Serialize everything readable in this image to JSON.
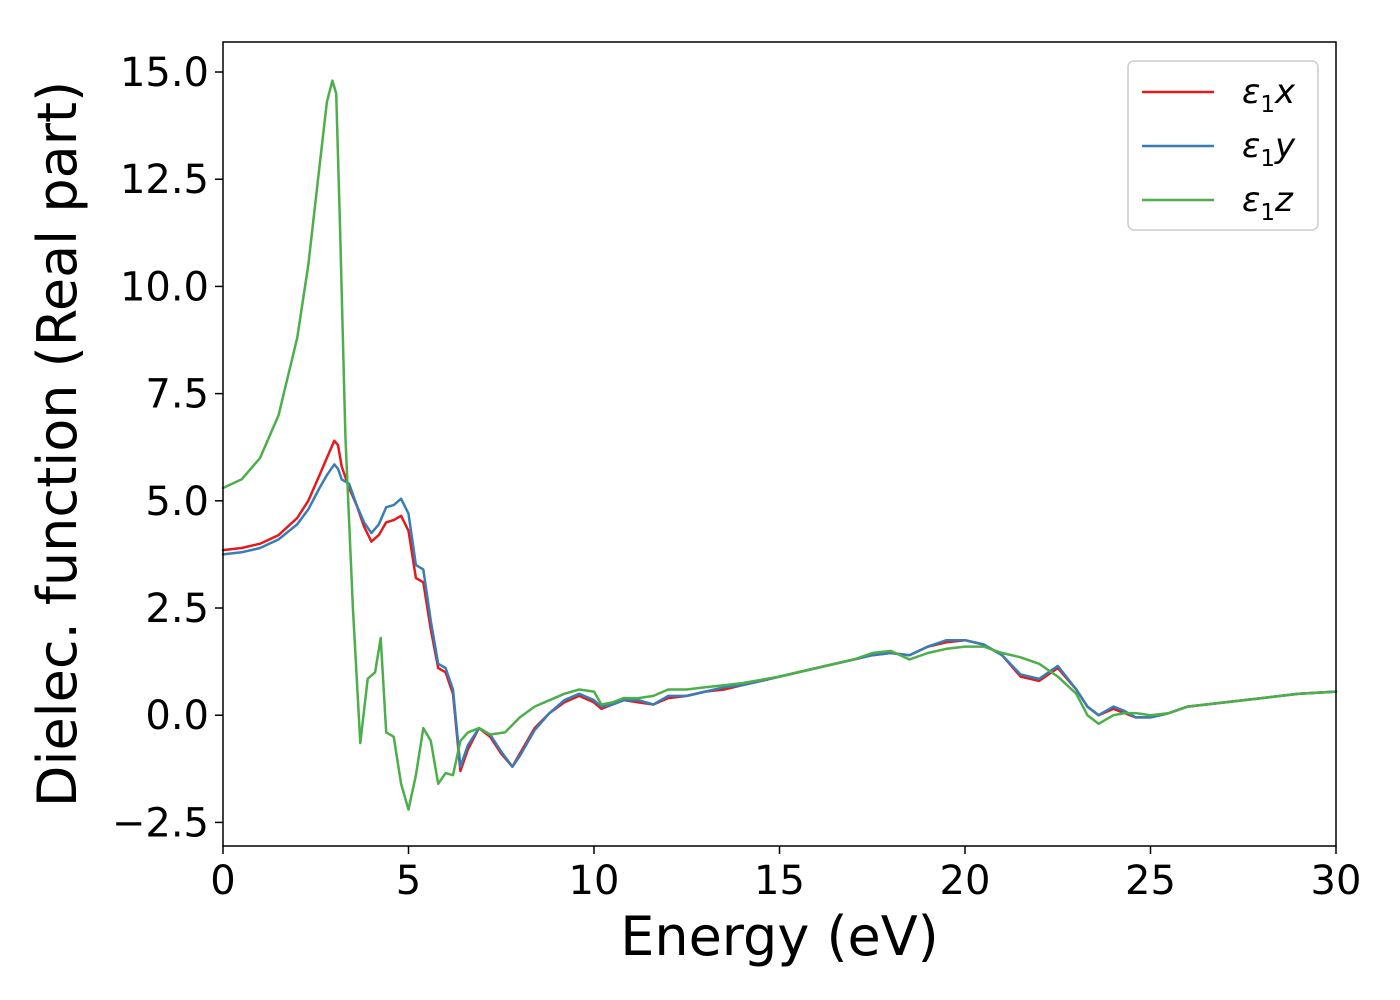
{
  "chart_data": {
    "type": "line",
    "title": "",
    "xlabel": "Energy (eV)",
    "ylabel": "Dielec. function (Real part)",
    "xlim": [
      0,
      30
    ],
    "ylim": [
      -3.05,
      15.7
    ],
    "xticks": [
      0,
      5,
      10,
      15,
      20,
      25,
      30
    ],
    "xtick_labels": [
      "0",
      "5",
      "10",
      "15",
      "20",
      "25",
      "30"
    ],
    "yticks": [
      -2.5,
      0.0,
      2.5,
      5.0,
      7.5,
      10.0,
      12.5,
      15.0
    ],
    "ytick_labels": [
      "−2.5",
      "0.0",
      "2.5",
      "5.0",
      "7.5",
      "10.0",
      "12.5",
      "15.0"
    ],
    "grid": false,
    "legend_position": "top-right",
    "series": [
      {
        "name": "ε1x",
        "label_main": "ε",
        "label_sub": "1",
        "label_suffix": "x",
        "color": "#e41a1c",
        "x": [
          0,
          0.5,
          1.0,
          1.5,
          2.0,
          2.3,
          2.6,
          2.8,
          3.0,
          3.1,
          3.2,
          3.4,
          3.6,
          3.8,
          4.0,
          4.2,
          4.4,
          4.6,
          4.8,
          5.0,
          5.2,
          5.4,
          5.6,
          5.8,
          6.0,
          6.2,
          6.4,
          6.6,
          6.9,
          7.2,
          7.5,
          7.8,
          8.0,
          8.4,
          8.8,
          9.2,
          9.6,
          10.0,
          10.2,
          10.5,
          10.8,
          11.2,
          11.6,
          12.0,
          12.5,
          13.0,
          13.5,
          14.0,
          15.0,
          16.0,
          17.0,
          17.5,
          18.0,
          18.5,
          19.0,
          19.5,
          20.0,
          20.5,
          21.0,
          21.5,
          22.0,
          22.5,
          23.0,
          23.3,
          23.6,
          24.0,
          24.3,
          24.6,
          25.0,
          25.5,
          26.0,
          27.0,
          28.0,
          29.0,
          30.0
        ],
        "y": [
          3.85,
          3.9,
          4.0,
          4.2,
          4.6,
          5.0,
          5.6,
          6.0,
          6.4,
          6.3,
          5.8,
          5.3,
          4.9,
          4.4,
          4.05,
          4.2,
          4.5,
          4.55,
          4.65,
          4.3,
          3.2,
          3.1,
          2.0,
          1.1,
          1.0,
          0.5,
          -1.3,
          -0.8,
          -0.3,
          -0.5,
          -0.9,
          -1.2,
          -0.9,
          -0.3,
          0.05,
          0.3,
          0.45,
          0.3,
          0.15,
          0.25,
          0.35,
          0.3,
          0.25,
          0.4,
          0.45,
          0.55,
          0.6,
          0.7,
          0.9,
          1.1,
          1.3,
          1.4,
          1.45,
          1.4,
          1.6,
          1.7,
          1.75,
          1.65,
          1.4,
          0.9,
          0.8,
          1.1,
          0.6,
          0.2,
          0.0,
          0.15,
          0.05,
          -0.05,
          -0.05,
          0.05,
          0.2,
          0.3,
          0.4,
          0.5,
          0.55
        ]
      },
      {
        "name": "ε1y",
        "label_main": "ε",
        "label_sub": "1",
        "label_suffix": "y",
        "color": "#377eb8",
        "x": [
          0,
          0.5,
          1.0,
          1.5,
          2.0,
          2.3,
          2.6,
          2.8,
          3.0,
          3.1,
          3.2,
          3.4,
          3.6,
          3.8,
          4.0,
          4.2,
          4.4,
          4.6,
          4.8,
          5.0,
          5.2,
          5.4,
          5.6,
          5.8,
          6.0,
          6.2,
          6.4,
          6.6,
          6.9,
          7.2,
          7.5,
          7.8,
          8.0,
          8.4,
          8.8,
          9.2,
          9.6,
          10.0,
          10.2,
          10.5,
          10.8,
          11.2,
          11.6,
          12.0,
          12.5,
          13.0,
          13.5,
          14.0,
          15.0,
          16.0,
          17.0,
          17.5,
          18.0,
          18.5,
          19.0,
          19.5,
          20.0,
          20.5,
          21.0,
          21.5,
          22.0,
          22.5,
          23.0,
          23.3,
          23.6,
          24.0,
          24.3,
          24.6,
          25.0,
          25.5,
          26.0,
          27.0,
          28.0,
          29.0,
          30.0
        ],
        "y": [
          3.75,
          3.8,
          3.9,
          4.1,
          4.45,
          4.8,
          5.3,
          5.6,
          5.85,
          5.75,
          5.5,
          5.4,
          4.9,
          4.5,
          4.25,
          4.45,
          4.85,
          4.9,
          5.05,
          4.7,
          3.5,
          3.4,
          2.2,
          1.2,
          1.1,
          0.6,
          -1.2,
          -0.7,
          -0.3,
          -0.45,
          -0.85,
          -1.2,
          -0.95,
          -0.35,
          0.05,
          0.35,
          0.5,
          0.35,
          0.2,
          0.25,
          0.35,
          0.35,
          0.25,
          0.45,
          0.45,
          0.55,
          0.65,
          0.7,
          0.9,
          1.1,
          1.3,
          1.4,
          1.45,
          1.4,
          1.6,
          1.75,
          1.75,
          1.65,
          1.4,
          0.95,
          0.85,
          1.15,
          0.6,
          0.2,
          0.0,
          0.2,
          0.1,
          -0.05,
          -0.05,
          0.05,
          0.2,
          0.3,
          0.4,
          0.5,
          0.55
        ]
      },
      {
        "name": "ε1z",
        "label_main": "ε",
        "label_sub": "1",
        "label_suffix": "z",
        "color": "#4daf4a",
        "x": [
          0,
          0.5,
          1.0,
          1.5,
          2.0,
          2.3,
          2.6,
          2.8,
          2.95,
          3.05,
          3.15,
          3.3,
          3.5,
          3.7,
          3.9,
          4.1,
          4.25,
          4.4,
          4.6,
          4.8,
          5.0,
          5.2,
          5.4,
          5.6,
          5.8,
          6.0,
          6.2,
          6.4,
          6.6,
          6.9,
          7.2,
          7.6,
          8.0,
          8.4,
          8.8,
          9.2,
          9.6,
          10.0,
          10.2,
          10.5,
          10.8,
          11.2,
          11.6,
          12.0,
          12.5,
          13.0,
          13.5,
          14.0,
          15.0,
          16.0,
          17.0,
          17.5,
          18.0,
          18.5,
          19.0,
          19.5,
          20.0,
          20.5,
          21.0,
          21.5,
          22.0,
          22.5,
          23.0,
          23.3,
          23.6,
          24.0,
          24.3,
          24.6,
          25.0,
          25.5,
          26.0,
          27.0,
          28.0,
          29.0,
          30.0
        ],
        "y": [
          5.3,
          5.5,
          6.0,
          7.0,
          8.8,
          10.5,
          12.8,
          14.3,
          14.8,
          14.5,
          11.5,
          6.5,
          2.5,
          -0.65,
          0.85,
          1.0,
          1.8,
          -0.4,
          -0.5,
          -1.6,
          -2.2,
          -1.4,
          -0.3,
          -0.6,
          -1.6,
          -1.35,
          -1.4,
          -0.6,
          -0.4,
          -0.3,
          -0.45,
          -0.4,
          -0.05,
          0.2,
          0.35,
          0.5,
          0.6,
          0.55,
          0.25,
          0.3,
          0.4,
          0.4,
          0.45,
          0.6,
          0.6,
          0.65,
          0.7,
          0.75,
          0.9,
          1.1,
          1.3,
          1.45,
          1.5,
          1.3,
          1.45,
          1.55,
          1.6,
          1.6,
          1.45,
          1.35,
          1.2,
          0.9,
          0.5,
          0.0,
          -0.2,
          0.0,
          0.05,
          0.05,
          0.0,
          0.05,
          0.2,
          0.3,
          0.4,
          0.5,
          0.55
        ]
      }
    ]
  }
}
